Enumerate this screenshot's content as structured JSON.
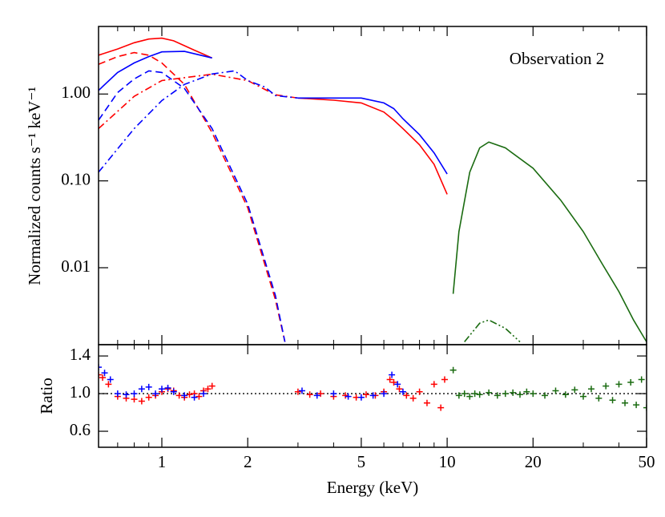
{
  "chart_data": [
    {
      "type": "line",
      "ylabel": "Normalized counts s⁻¹ keV⁻¹",
      "annotation": "Observation 2",
      "xscale": "log",
      "yscale": "log",
      "xlim": [
        0.6,
        50
      ],
      "ylim": [
        0.0013,
        6
      ],
      "yticks": [
        {
          "value": 1,
          "label": "1.00"
        },
        {
          "value": 0.1,
          "label": "0.10"
        },
        {
          "value": 0.01,
          "label": "0.01"
        }
      ],
      "series": [
        {
          "color": "#ff0000",
          "style": "solid",
          "x": [
            0.6,
            0.7,
            0.8,
            0.9,
            1.0,
            1.1,
            1.2,
            1.3,
            1.5,
            null,
            3.0,
            4,
            5,
            6,
            6.5,
            7,
            8,
            9,
            10
          ],
          "values": [
            2.8,
            3.3,
            3.9,
            4.3,
            4.4,
            4.1,
            3.6,
            3.2,
            2.6,
            null,
            0.9,
            0.85,
            0.79,
            0.62,
            0.5,
            0.4,
            0.26,
            0.155,
            0.07
          ]
        },
        {
          "color": "#0000ff",
          "style": "solid",
          "x": [
            0.6,
            0.7,
            0.8,
            0.9,
            1.0,
            1.2,
            1.5,
            null,
            3.0,
            4,
            5,
            6,
            6.5,
            7,
            8,
            9,
            10
          ],
          "values": [
            1.1,
            1.77,
            2.28,
            2.7,
            3.06,
            3.1,
            2.6,
            null,
            0.9,
            0.9,
            0.9,
            0.79,
            0.68,
            0.52,
            0.34,
            0.21,
            0.12
          ]
        },
        {
          "color": "#ff0000",
          "style": "dashed",
          "x": [
            0.6,
            0.7,
            0.8,
            0.9,
            1.0,
            1.2,
            1.5,
            2.0,
            2.5,
            2.7
          ],
          "values": [
            2.2,
            2.7,
            3.0,
            2.8,
            2.28,
            1.29,
            0.36,
            0.049,
            0.0043,
            0.0014
          ]
        },
        {
          "color": "#0000ff",
          "style": "dashed",
          "x": [
            0.6,
            0.7,
            0.8,
            0.9,
            1.0,
            1.2,
            1.5,
            2.0,
            2.5,
            2.7
          ],
          "values": [
            0.5,
            1.04,
            1.49,
            1.85,
            1.77,
            1.16,
            0.4,
            0.054,
            0.0048,
            0.0014
          ]
        },
        {
          "color": "#ff0000",
          "style": "dashdot",
          "x": [
            0.6,
            0.8,
            1.0,
            1.5,
            2.0,
            2.5,
            3.0
          ],
          "values": [
            0.4,
            0.94,
            1.43,
            1.69,
            1.43,
            0.98,
            0.9
          ]
        },
        {
          "color": "#0000ff",
          "style": "dashdot",
          "x": [
            0.6,
            0.8,
            1.0,
            1.2,
            1.5,
            1.8,
            2.0,
            2.3,
            2.5,
            3.0
          ],
          "values": [
            0.126,
            0.4,
            0.84,
            1.29,
            1.7,
            1.85,
            1.43,
            1.2,
            0.96,
            0.9
          ]
        },
        {
          "color": "#1a6b10",
          "style": "solid",
          "x": [
            10.5,
            11,
            12,
            13,
            14,
            16,
            20,
            25,
            30,
            35,
            40,
            45,
            50
          ],
          "values": [
            0.005,
            0.026,
            0.126,
            0.24,
            0.28,
            0.24,
            0.14,
            0.06,
            0.026,
            0.011,
            0.0053,
            0.0025,
            0.0014
          ]
        },
        {
          "color": "#1a6b10",
          "style": "dashdotdot",
          "x": [
            11.5,
            13,
            14,
            16,
            18
          ],
          "values": [
            0.0014,
            0.0023,
            0.0025,
            0.002,
            0.0014
          ]
        }
      ]
    },
    {
      "type": "scatter",
      "xlabel": "Energy (keV)",
      "ylabel": "Ratio",
      "xscale": "log",
      "xlim": [
        0.6,
        50
      ],
      "ylim": [
        0.43,
        1.52
      ],
      "xticks": [
        1,
        2,
        5,
        10,
        20,
        50
      ],
      "xminorticks": [
        0.7,
        0.8,
        0.9,
        3,
        4,
        6,
        7,
        8,
        9,
        30,
        40
      ],
      "yticks": [
        1.4,
        {
          "value": 1,
          "label": "1.0"
        },
        0.6
      ],
      "reference_line": 1,
      "series": [
        {
          "color": "#ff0000",
          "x": [
            0.6,
            0.62,
            0.65,
            0.7,
            0.75,
            0.8,
            0.85,
            0.9,
            0.95,
            1.0,
            1.05,
            1.1,
            1.15,
            1.2,
            1.25,
            1.3,
            1.35,
            1.4,
            1.45,
            1.5,
            3.0,
            3.3,
            3.6,
            4.0,
            4.4,
            4.8,
            5.2,
            5.6,
            6.0,
            6.3,
            6.5,
            6.8,
            7.2,
            7.6,
            8.0,
            8.5,
            9.0,
            9.5,
            9.8
          ],
          "values": [
            1.2,
            1.17,
            1.1,
            0.97,
            0.95,
            0.94,
            0.92,
            0.96,
            0.98,
            1.02,
            1.05,
            1.03,
            0.98,
            0.96,
            0.99,
            1.0,
            0.97,
            1.03,
            1.05,
            1.08,
            1.02,
            0.99,
            1.0,
            0.97,
            0.98,
            0.96,
            0.99,
            0.98,
            1.02,
            1.15,
            1.12,
            1.05,
            0.98,
            0.95,
            1.02,
            0.9,
            1.1,
            0.85,
            1.15
          ]
        },
        {
          "color": "#0000ff",
          "x": [
            0.6,
            0.63,
            0.66,
            0.7,
            0.75,
            0.8,
            0.85,
            0.9,
            0.95,
            1.0,
            1.05,
            1.1,
            1.2,
            1.3,
            1.4,
            3.1,
            3.5,
            4.0,
            4.5,
            5.0,
            5.5,
            6.0,
            6.4,
            6.7,
            7.0
          ],
          "values": [
            1.28,
            1.22,
            1.15,
            1.0,
            0.99,
            1.0,
            1.05,
            1.07,
            1.0,
            1.05,
            1.06,
            1.02,
            0.98,
            0.96,
            1.0,
            1.03,
            0.98,
            1.0,
            0.97,
            0.96,
            0.98,
            1.0,
            1.2,
            1.1,
            1.02
          ]
        },
        {
          "color": "#1a6b10",
          "x": [
            10.5,
            11,
            11.5,
            12,
            12.5,
            13,
            14,
            15,
            16,
            17,
            18,
            19,
            20,
            22,
            24,
            26,
            28,
            30,
            32,
            34,
            36,
            38,
            40,
            42,
            44,
            46,
            48,
            50
          ],
          "values": [
            1.25,
            0.98,
            1.0,
            0.97,
            1.0,
            0.99,
            1.01,
            0.98,
            1.0,
            1.01,
            0.99,
            1.02,
            1.0,
            0.98,
            1.03,
            0.99,
            1.04,
            0.97,
            1.05,
            0.95,
            1.08,
            0.93,
            1.1,
            0.9,
            1.12,
            0.88,
            1.15,
            0.85
          ]
        }
      ]
    }
  ]
}
